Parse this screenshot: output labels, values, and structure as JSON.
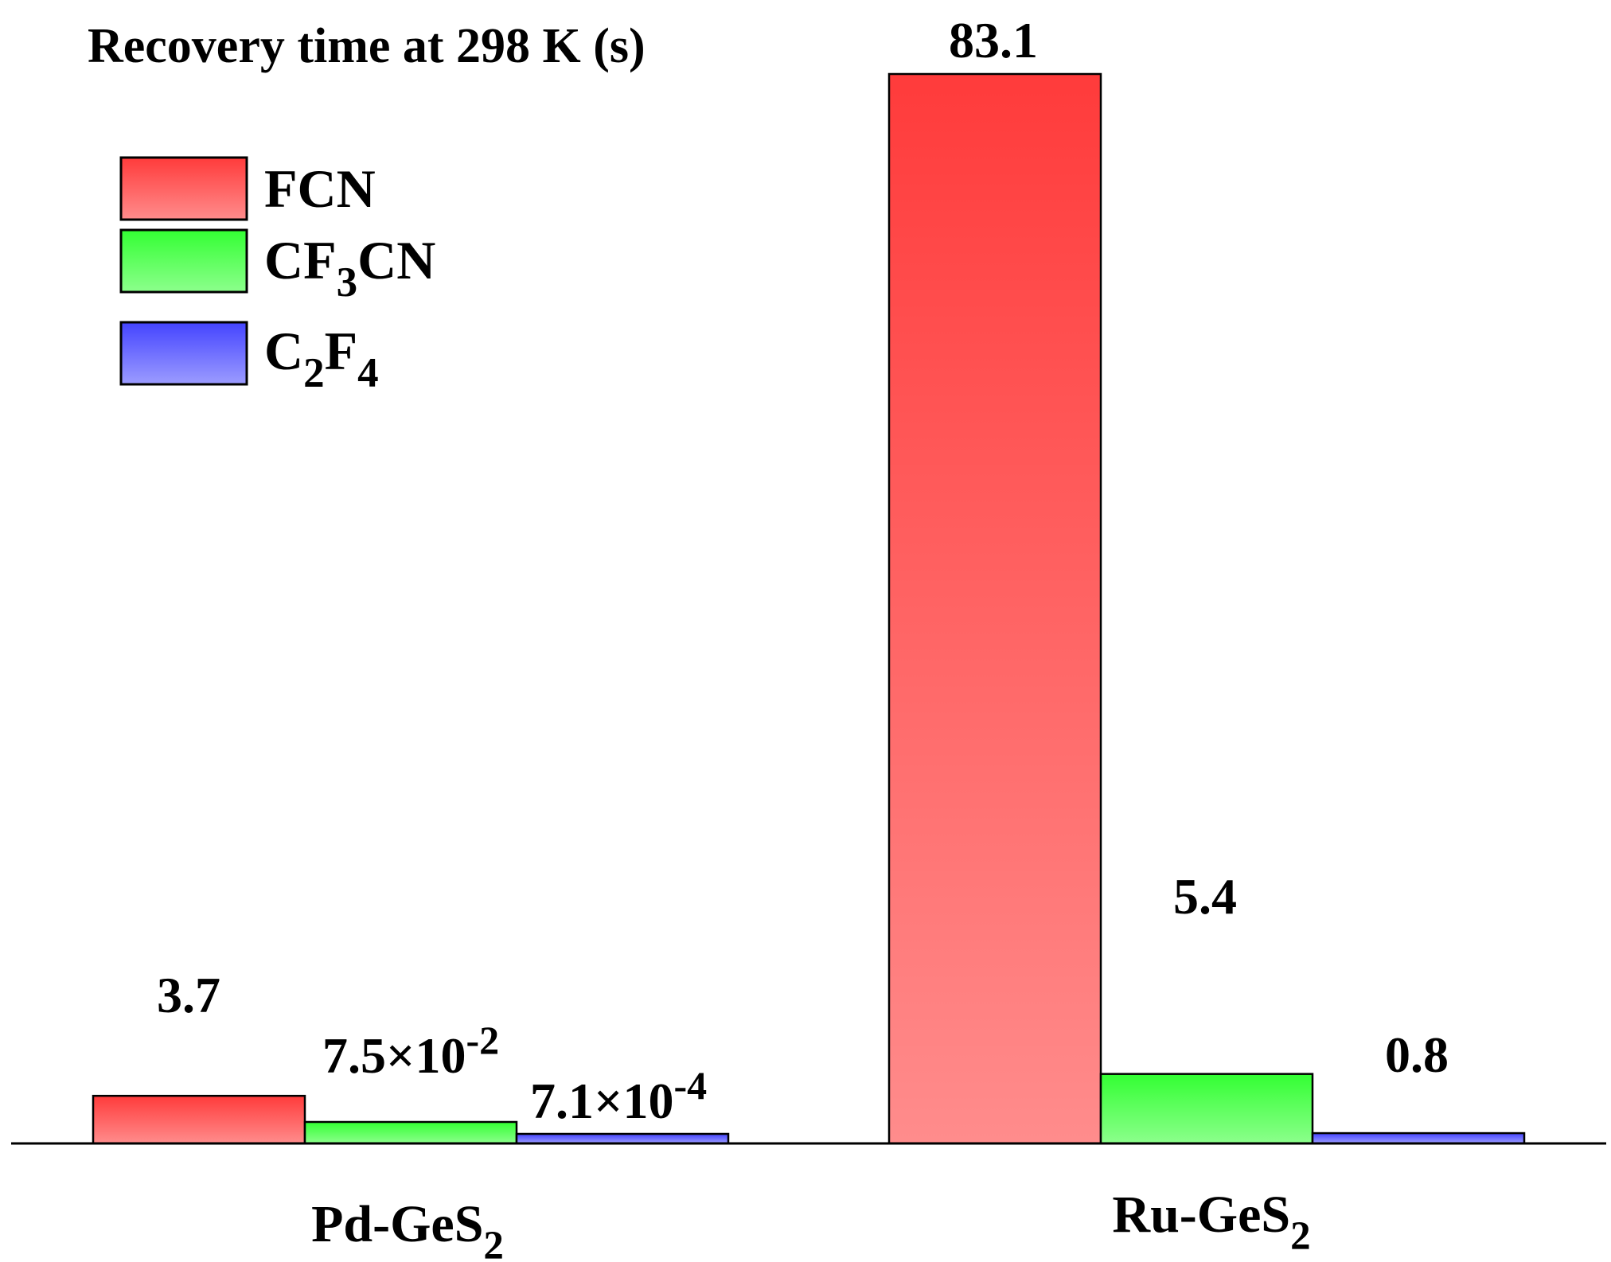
{
  "chart_data": {
    "type": "bar",
    "title": "Recovery time at 298 K (s)",
    "xlabel": "",
    "ylabel": "",
    "ylim": [
      0,
      83.1
    ],
    "grid": false,
    "legend_position": "top-left",
    "categories": [
      {
        "base": "Pd-GeS",
        "sub": "2"
      },
      {
        "base": "Ru-GeS",
        "sub": "2"
      }
    ],
    "series": [
      {
        "name": "FCN",
        "name_parts": [
          {
            "t": "FCN"
          }
        ],
        "color_top": "#ff3b3b",
        "color_bottom": "#ff8c8c",
        "values": [
          3.7,
          83.1
        ],
        "value_labels": [
          [
            {
              "t": "3.7"
            }
          ],
          [
            {
              "t": "83.1"
            }
          ]
        ]
      },
      {
        "name": "CF3CN",
        "name_parts": [
          {
            "t": "CF"
          },
          {
            "t": "3",
            "s": "sub"
          },
          {
            "t": "CN"
          }
        ],
        "color_top": "#33ff33",
        "color_bottom": "#8cff8c",
        "values": [
          0.075,
          5.4
        ],
        "value_labels": [
          [
            {
              "t": "7.5×10"
            },
            {
              "t": "-2",
              "s": "sup"
            }
          ],
          [
            {
              "t": "5.4"
            }
          ]
        ]
      },
      {
        "name": "C2F4",
        "name_parts": [
          {
            "t": "C"
          },
          {
            "t": "2",
            "s": "sub"
          },
          {
            "t": "F"
          },
          {
            "t": "4",
            "s": "sub"
          }
        ],
        "color_top": "#4444ff",
        "color_bottom": "#9c9cff",
        "values": [
          0.00071,
          0.8
        ],
        "value_labels": [
          [
            {
              "t": "7.1×10"
            },
            {
              "t": "-4",
              "s": "sup"
            }
          ],
          [
            {
              "t": "0.8"
            }
          ]
        ]
      }
    ]
  }
}
